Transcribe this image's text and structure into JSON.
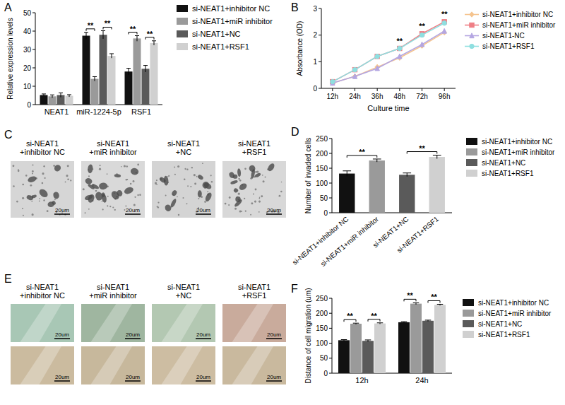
{
  "chart_data": [
    {
      "type": "bar",
      "panel_label": "A",
      "y_label": "Relative expression levels",
      "categories": [
        "NEAT1",
        "miR-1224-5p",
        "RSF1"
      ],
      "series": [
        {
          "name": "si-NEAT1+inhibitor NC",
          "color": "#111111",
          "values": [
            5.2,
            37.5,
            18
          ],
          "errors": [
            0.6,
            1.8,
            1.8
          ]
        },
        {
          "name": "si-NEAT1+miR inhibitor",
          "color": "#9a9a9a",
          "values": [
            4.5,
            14,
            36
          ],
          "errors": [
            0.8,
            1.2,
            1.5
          ]
        },
        {
          "name": "si-NEAT1+NC",
          "color": "#5a5a5a",
          "values": [
            5.2,
            38,
            19.5
          ],
          "errors": [
            1.2,
            2.2,
            1.8
          ]
        },
        {
          "name": "si-NEAT1+RSF1",
          "color": "#d0d0d0",
          "values": [
            4.8,
            26.5,
            33.5
          ],
          "errors": [
            0.6,
            1.2,
            1.2
          ]
        }
      ],
      "ylim": [
        0,
        50
      ],
      "yticks": [
        0,
        10,
        20,
        30,
        40,
        50
      ],
      "legend": "right",
      "annotations": [
        {
          "text": "**",
          "category": 1,
          "series": [
            0,
            1
          ]
        },
        {
          "text": "**",
          "category": 1,
          "series": [
            2,
            3
          ]
        },
        {
          "text": "**",
          "category": 2,
          "series": [
            0,
            1
          ]
        },
        {
          "text": "**",
          "category": 2,
          "series": [
            2,
            3
          ]
        }
      ]
    },
    {
      "type": "line",
      "panel_label": "B",
      "x_label": "Culture time",
      "y_label": "Absorbance (OD)",
      "categories": [
        "12h",
        "24h",
        "36h",
        "48h",
        "72h",
        "96h"
      ],
      "series": [
        {
          "name": "si-NEAT1+inhibitor NC",
          "color": "#f5c48f",
          "marker": "diamond",
          "line_style": "solid",
          "values": [
            0.2,
            0.45,
            0.8,
            1.15,
            1.6,
            2.1
          ]
        },
        {
          "name": "si-NEAT1+miR inhibitor",
          "color": "#ef7f86",
          "marker": "square",
          "line_style": "solid",
          "values": [
            0.25,
            0.7,
            1.2,
            1.5,
            2.05,
            2.5
          ]
        },
        {
          "name": "si-NEAT1-NC",
          "color": "#b4a6e2",
          "marker": "triangle",
          "line_style": "solid",
          "values": [
            0.2,
            0.45,
            0.75,
            1.2,
            1.65,
            2.15
          ]
        },
        {
          "name": "si-NEAT1+RSF1",
          "color": "#8fdfe0",
          "marker": "circle",
          "line_style": "solid",
          "values": [
            0.25,
            0.7,
            1.2,
            1.5,
            2.0,
            2.45
          ]
        }
      ],
      "ylim": [
        0,
        3
      ],
      "yticks": [
        0,
        1,
        2,
        3
      ],
      "legend": "right",
      "annotations": [
        {
          "text": "**",
          "category": 3
        },
        {
          "text": "**",
          "category": 4
        },
        {
          "text": "**",
          "category": 5
        }
      ]
    },
    {
      "type": "image",
      "panel_label": "C",
      "labels": [
        [
          "si-NEAT1",
          "+inhibitor NC"
        ],
        [
          "si-NEAT1",
          "+miR inhibitor"
        ],
        [
          "si-NEAT1",
          "+NC"
        ],
        [
          "si-NEAT1",
          "+RSF1"
        ]
      ],
      "rows": [
        [
          "20um",
          "20um",
          "20um",
          "20um"
        ]
      ]
    },
    {
      "type": "bar",
      "panel_label": "D",
      "y_label": "Number of invaded cells",
      "categories": [
        "si-NEAT1+inhibitor NC",
        "si-NEAT1+miR inhibitor",
        "si-NEAT1+NC",
        "si-NEAT1+RSF1"
      ],
      "values": [
        132,
        176,
        128,
        188
      ],
      "errors": [
        9,
        5,
        6,
        6
      ],
      "colors": [
        "#111111",
        "#9a9a9a",
        "#5a5a5a",
        "#d0d0d0"
      ],
      "ylim": [
        0,
        250
      ],
      "yticks": [
        0,
        50,
        100,
        150,
        200,
        250
      ],
      "legend": "right",
      "annotations": [
        {
          "text": "**",
          "categories": [
            0,
            1
          ]
        },
        {
          "text": "**",
          "categories": [
            2,
            3
          ]
        }
      ]
    },
    {
      "type": "image",
      "panel_label": "E",
      "labels": [
        [
          "si-NEAT1",
          "+inhibitor NC"
        ],
        [
          "si-NEAT1",
          "+miR inhibitor"
        ],
        [
          "si-NEAT1",
          "+NC"
        ],
        [
          "si-NEAT1",
          "+RSF1"
        ]
      ],
      "rows": [
        [
          "20um",
          "20um",
          "20um",
          "20um"
        ],
        [
          "20um",
          "20um",
          "20um",
          "20um"
        ]
      ]
    },
    {
      "type": "bar",
      "panel_label": "F",
      "y_label": "Distance of cell migration (um)",
      "categories": [
        "12h",
        "24h"
      ],
      "series": [
        {
          "name": "si-NEAT1+inhibitor NC",
          "color": "#111111",
          "values": [
            110,
            170
          ],
          "errors": [
            2,
            2
          ]
        },
        {
          "name": "si-NEAT1+miR inhibitor",
          "color": "#9a9a9a",
          "values": [
            165,
            232
          ],
          "errors": [
            2,
            3
          ]
        },
        {
          "name": "si-NEAT1+NC",
          "color": "#5a5a5a",
          "values": [
            108,
            175
          ],
          "errors": [
            3,
            2
          ]
        },
        {
          "name": "si-NEAT1+RSF1",
          "color": "#d0d0d0",
          "values": [
            166,
            228
          ],
          "errors": [
            2,
            2
          ]
        }
      ],
      "ylim": [
        0,
        250
      ],
      "yticks": [
        0,
        50,
        100,
        150,
        200,
        250
      ],
      "legend": "right",
      "annotations": [
        {
          "text": "**",
          "category": 0,
          "series": [
            0,
            1
          ]
        },
        {
          "text": "**",
          "category": 0,
          "series": [
            2,
            3
          ]
        },
        {
          "text": "**",
          "category": 1,
          "series": [
            0,
            1
          ]
        },
        {
          "text": "**",
          "category": 1,
          "series": [
            2,
            3
          ]
        }
      ]
    }
  ]
}
